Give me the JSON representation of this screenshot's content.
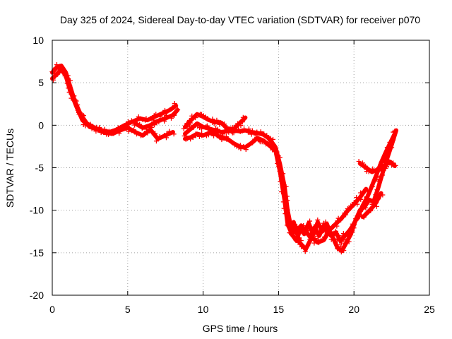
{
  "chart_data": {
    "type": "scatter",
    "title": "Day 325 of 2024, Sidereal Day-to-day VTEC variation (SDTVAR) for receiver p070",
    "xlabel": "GPS time / hours",
    "ylabel": "SDTVAR / TECUs",
    "xlim": [
      0,
      25
    ],
    "ylim": [
      -20,
      10
    ],
    "x_ticks": [
      0,
      5,
      10,
      15,
      20,
      25
    ],
    "y_ticks": [
      -20,
      -15,
      -10,
      -5,
      0,
      5,
      10
    ],
    "x_tick_labels": [
      "0",
      "5",
      "10",
      "15",
      "20",
      "25"
    ],
    "y_tick_labels": [
      "-20",
      "-15",
      "-10",
      "-5",
      "0",
      "5",
      "10"
    ],
    "grid": true,
    "marker": "+",
    "series": [
      {
        "name": "SDTVAR",
        "color": "#ff0000",
        "segments": [
          [
            [
              0.0,
              6.2
            ],
            [
              0.3,
              6.8
            ],
            [
              0.6,
              7.0
            ],
            [
              0.9,
              6.2
            ],
            [
              1.2,
              4.5
            ],
            [
              1.5,
              2.8
            ],
            [
              1.9,
              1.2
            ],
            [
              2.3,
              0.2
            ],
            [
              2.8,
              -0.3
            ],
            [
              3.3,
              -0.6
            ],
            [
              3.8,
              -0.8
            ],
            [
              4.3,
              -0.5
            ],
            [
              4.8,
              0.0
            ],
            [
              5.3,
              0.4
            ],
            [
              5.8,
              0.8
            ],
            [
              6.3,
              0.6
            ],
            [
              6.8,
              1.0
            ],
            [
              7.3,
              1.4
            ],
            [
              7.8,
              1.8
            ],
            [
              8.2,
              2.3
            ]
          ],
          [
            [
              0.0,
              5.5
            ],
            [
              0.3,
              6.0
            ],
            [
              0.6,
              6.6
            ],
            [
              0.9,
              5.8
            ],
            [
              1.2,
              4.0
            ],
            [
              1.6,
              2.2
            ],
            [
              2.0,
              0.6
            ],
            [
              2.5,
              -0.2
            ],
            [
              3.0,
              -0.5
            ],
            [
              3.5,
              -0.9
            ],
            [
              4.0,
              -1.0
            ],
            [
              4.5,
              -0.6
            ],
            [
              5.0,
              -0.3
            ],
            [
              5.5,
              -0.8
            ],
            [
              6.0,
              -1.2
            ],
            [
              6.5,
              -0.5
            ],
            [
              7.0,
              -1.6
            ],
            [
              7.5,
              -1.2
            ],
            [
              8.0,
              -0.8
            ]
          ],
          [
            [
              5.5,
              0.2
            ],
            [
              6.0,
              -0.3
            ],
            [
              6.5,
              0.0
            ],
            [
              7.0,
              0.5
            ],
            [
              7.5,
              0.8
            ],
            [
              8.0,
              1.2
            ],
            [
              8.3,
              1.8
            ]
          ],
          [
            [
              8.8,
              -0.2
            ],
            [
              9.2,
              0.6
            ],
            [
              9.6,
              1.3
            ],
            [
              10.0,
              1.0
            ],
            [
              10.4,
              0.6
            ],
            [
              10.8,
              0.4
            ],
            [
              11.2,
              0.3
            ],
            [
              11.6,
              -0.4
            ],
            [
              12.0,
              -0.5
            ],
            [
              12.4,
              0.2
            ],
            [
              12.8,
              0.9
            ]
          ],
          [
            [
              8.8,
              -1.0
            ],
            [
              9.2,
              -0.4
            ],
            [
              9.6,
              0.2
            ],
            [
              10.0,
              -0.2
            ],
            [
              10.4,
              -0.4
            ],
            [
              10.8,
              -0.6
            ],
            [
              11.2,
              -0.8
            ],
            [
              11.6,
              -0.7
            ],
            [
              12.0,
              -0.6
            ],
            [
              12.4,
              -0.7
            ],
            [
              12.8,
              -0.6
            ],
            [
              13.2,
              -0.8
            ],
            [
              13.6,
              -0.9
            ],
            [
              14.0,
              -1.1
            ],
            [
              14.4,
              -1.6
            ],
            [
              14.8,
              -2.6
            ],
            [
              15.1,
              -4.6
            ],
            [
              15.4,
              -7.2
            ],
            [
              15.6,
              -10.0
            ],
            [
              15.8,
              -11.8
            ],
            [
              16.1,
              -12.6
            ],
            [
              16.4,
              -12.0
            ],
            [
              16.7,
              -12.8
            ],
            [
              17.0,
              -11.5
            ],
            [
              17.3,
              -12.9
            ],
            [
              17.6,
              -11.4
            ],
            [
              17.9,
              -12.5
            ],
            [
              18.2,
              -11.6
            ],
            [
              18.5,
              -13.0
            ],
            [
              18.8,
              -12.6
            ],
            [
              19.1,
              -13.6
            ],
            [
              19.4,
              -13.0
            ],
            [
              19.7,
              -12.4
            ],
            [
              20.0,
              -11.6
            ],
            [
              20.3,
              -10.6
            ],
            [
              20.6,
              -9.4
            ],
            [
              20.9,
              -8.4
            ],
            [
              21.2,
              -7.1
            ],
            [
              21.5,
              -5.8
            ],
            [
              21.8,
              -4.4
            ],
            [
              22.1,
              -3.2
            ],
            [
              22.4,
              -2.1
            ],
            [
              22.7,
              -1.0
            ]
          ],
          [
            [
              8.8,
              -1.6
            ],
            [
              9.2,
              -1.4
            ],
            [
              9.6,
              -1.0
            ],
            [
              10.0,
              -1.2
            ],
            [
              10.4,
              -0.9
            ],
            [
              10.8,
              -1.0
            ],
            [
              11.2,
              -1.5
            ],
            [
              11.6,
              -1.6
            ],
            [
              12.0,
              -2.1
            ],
            [
              12.4,
              -2.5
            ],
            [
              12.8,
              -2.6
            ],
            [
              13.2,
              -2.1
            ],
            [
              13.6,
              -1.5
            ],
            [
              14.0,
              -1.8
            ],
            [
              14.4,
              -2.4
            ],
            [
              14.8,
              -3.0
            ],
            [
              15.1,
              -5.5
            ],
            [
              15.4,
              -8.8
            ],
            [
              15.6,
              -11.6
            ],
            [
              15.9,
              -12.9
            ],
            [
              16.2,
              -13.6
            ],
            [
              16.5,
              -11.8
            ],
            [
              16.8,
              -12.4
            ],
            [
              17.1,
              -13.2
            ],
            [
              17.4,
              -12.0
            ],
            [
              17.7,
              -13.0
            ],
            [
              18.0,
              -11.8
            ],
            [
              18.3,
              -12.6
            ],
            [
              18.6,
              -13.2
            ],
            [
              18.9,
              -14.4
            ],
            [
              19.2,
              -14.8
            ],
            [
              19.5,
              -13.8
            ],
            [
              19.8,
              -12.8
            ],
            [
              20.1,
              -11.2
            ],
            [
              20.4,
              -10.0
            ],
            [
              20.7,
              -9.6
            ],
            [
              21.0,
              -8.8
            ],
            [
              21.3,
              -9.0
            ],
            [
              21.6,
              -7.4
            ],
            [
              21.9,
              -5.6
            ],
            [
              22.2,
              -3.9
            ],
            [
              22.5,
              -2.3
            ],
            [
              22.8,
              -0.6
            ]
          ],
          [
            [
              16.0,
              -11.4
            ],
            [
              16.4,
              -13.8
            ],
            [
              16.8,
              -14.6
            ],
            [
              17.2,
              -13.2
            ],
            [
              17.6,
              -13.8
            ],
            [
              18.0,
              -13.5
            ],
            [
              18.4,
              -12.3
            ],
            [
              18.8,
              -11.6
            ],
            [
              19.2,
              -10.9
            ],
            [
              19.6,
              -10.0
            ],
            [
              20.0,
              -9.3
            ],
            [
              20.4,
              -8.5
            ],
            [
              20.8,
              -7.5
            ]
          ],
          [
            [
              20.4,
              -4.5
            ],
            [
              20.8,
              -5.0
            ],
            [
              21.2,
              -5.5
            ],
            [
              21.6,
              -5.2
            ],
            [
              22.0,
              -4.8
            ],
            [
              22.4,
              -4.3
            ],
            [
              22.7,
              -4.8
            ]
          ],
          [
            [
              20.6,
              -10.8
            ],
            [
              21.0,
              -10.1
            ],
            [
              21.4,
              -9.3
            ],
            [
              21.8,
              -8.0
            ]
          ]
        ]
      }
    ]
  }
}
